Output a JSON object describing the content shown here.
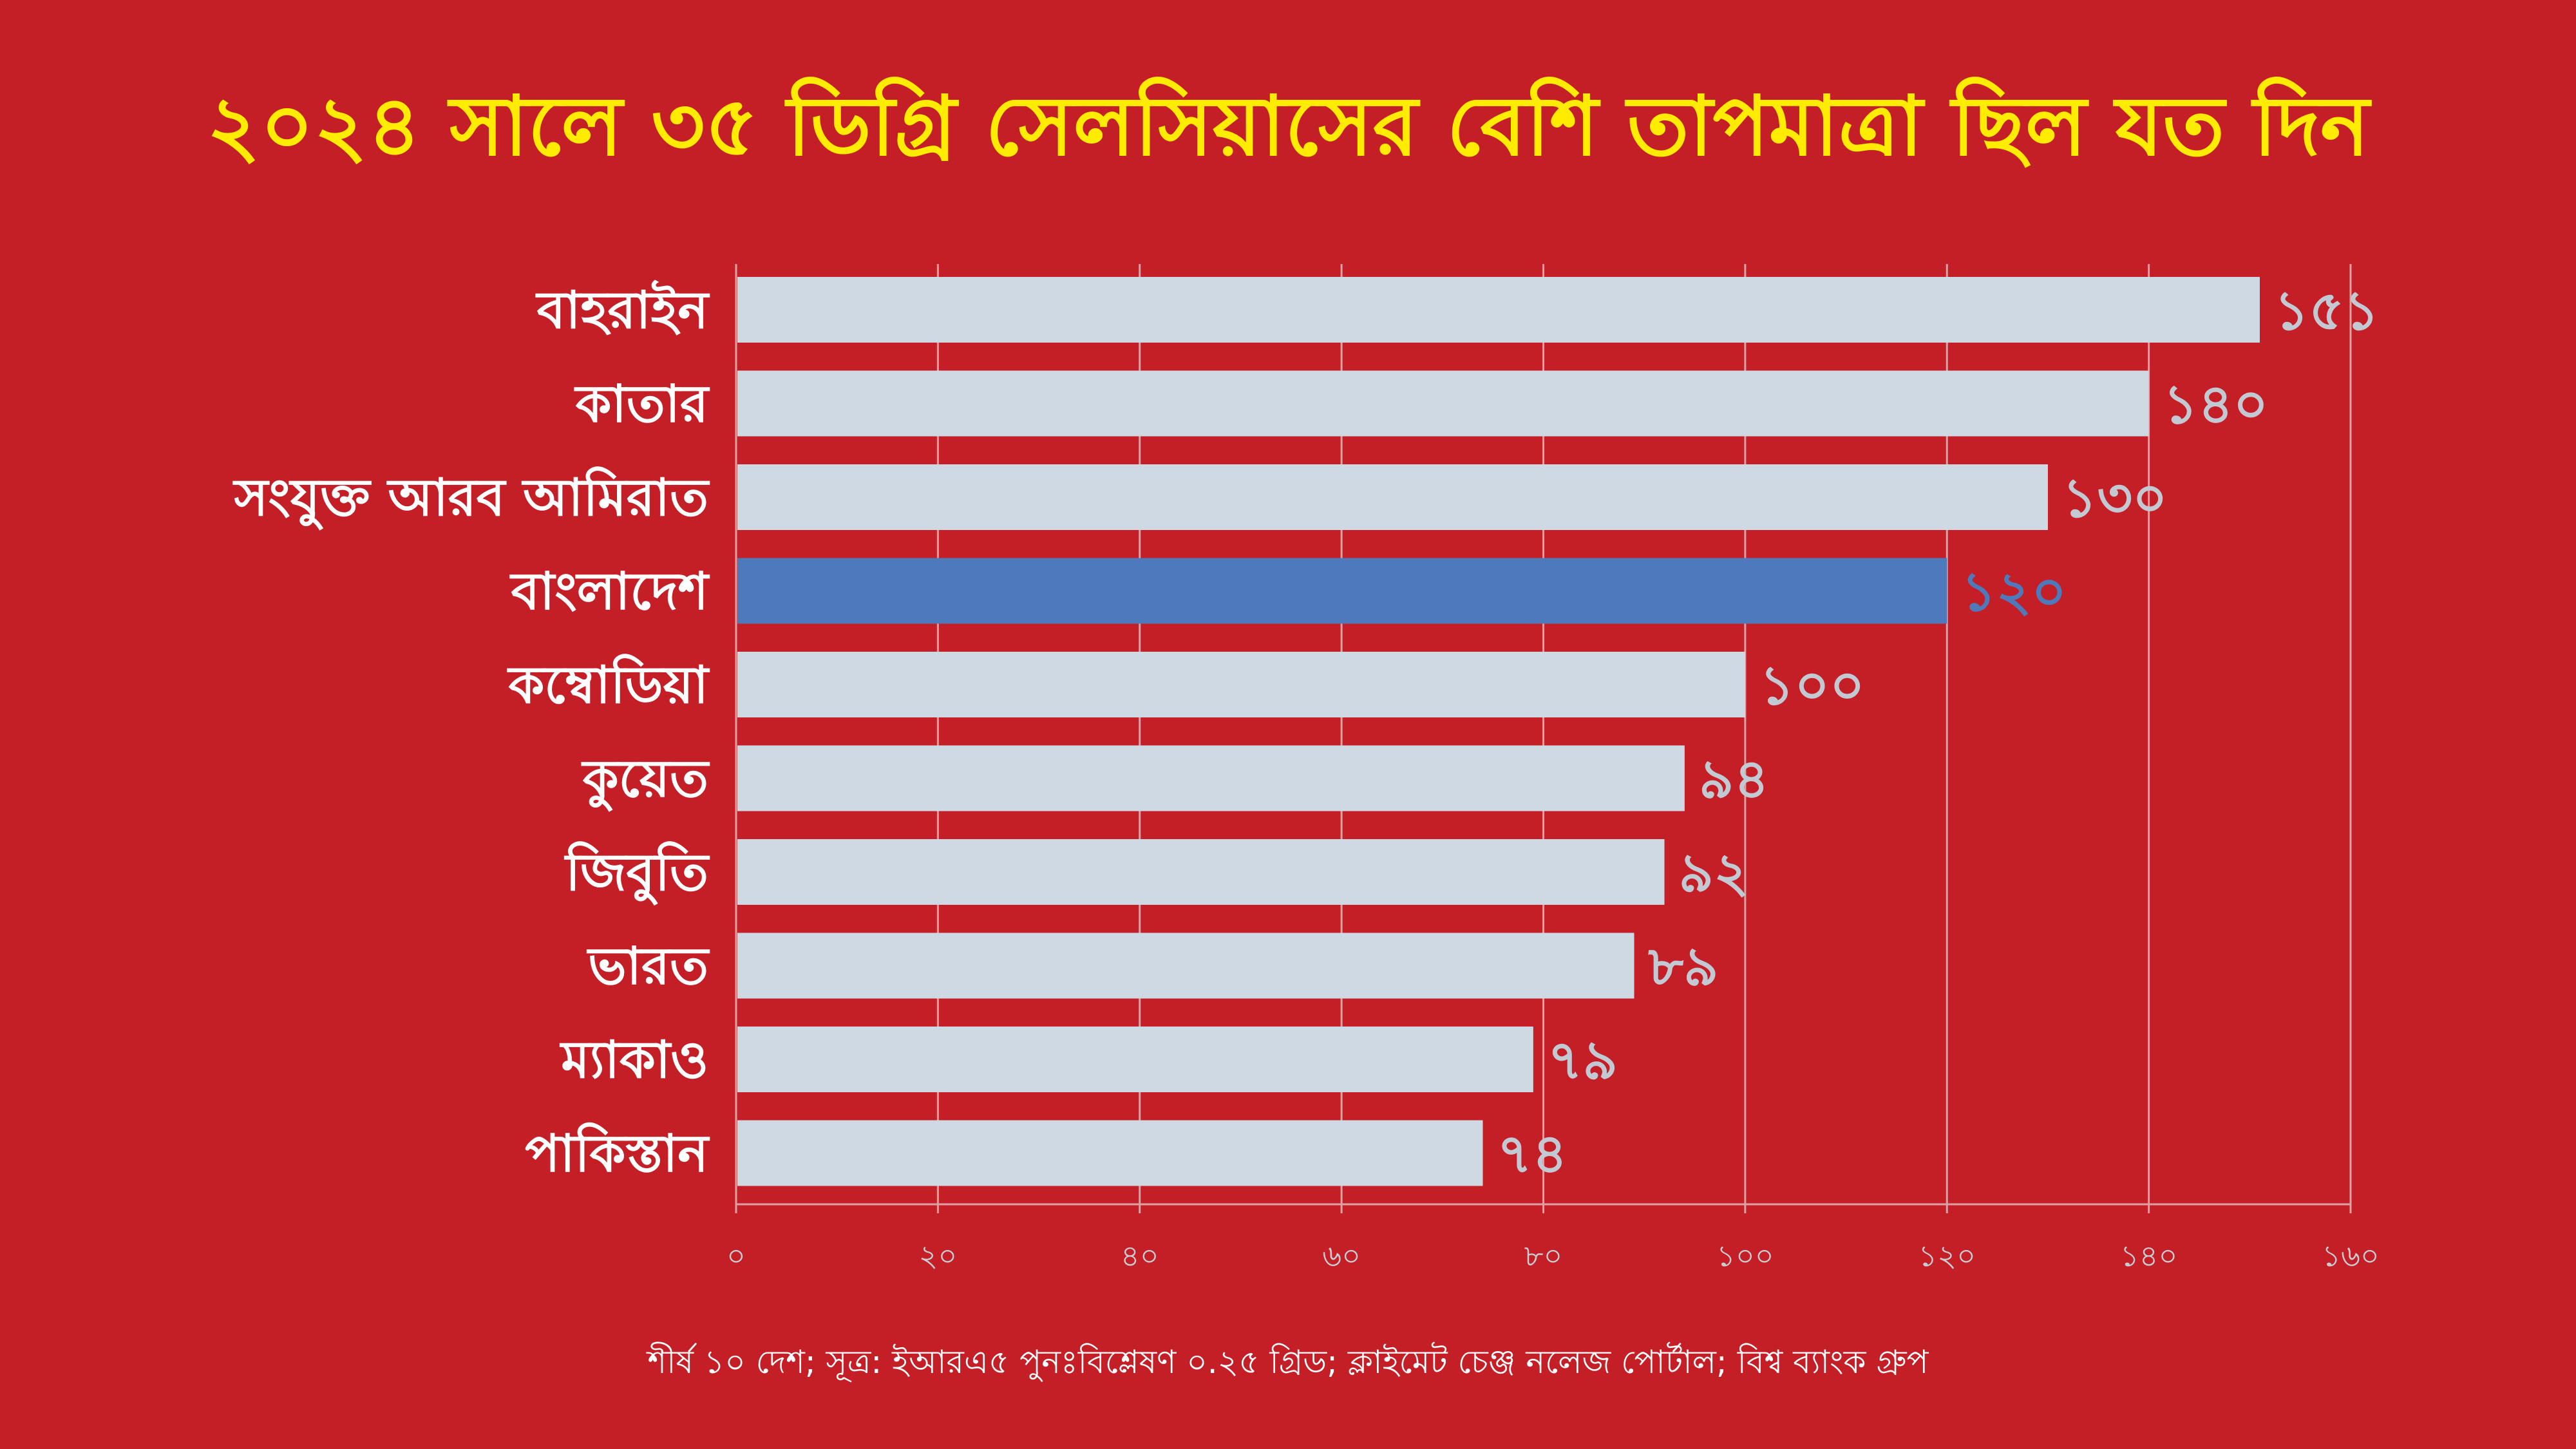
{
  "title": "২০২৪ সালে ৩৫ ডিগ্রি সেলসিয়াসের বেশি তাপমাত্রা ছিল যত দিন",
  "source_note": "শীর্ষ ১০ দেশ; সূত্র: ইআরএ৫ পুনঃবিশ্লেষণ ০.২৫ গ্রিড; ক্লাইমেট চেঞ্জ নলেজ পোর্টাল; বিশ্ব ব্যাংক গ্রুপ",
  "colors": {
    "background": "#c41f26",
    "title": "#ffec00",
    "bar": "#cfd9e4",
    "bar_highlight": "#4e7abc",
    "value_label": "#c3c9d2",
    "value_label_highlight": "#4e7abc",
    "gridline": "#dea1a3",
    "axis_tick_label": "#c8cdd4",
    "category_label": "#ffffff"
  },
  "chart_data": {
    "type": "bar",
    "orientation": "horizontal",
    "categories": [
      "বাহরাইন",
      "কাতার",
      "সংযুক্ত আরব আমিরাত",
      "বাংলাদেশ",
      "কম্বোডিয়া",
      "কুয়েত",
      "জিবুতি",
      "ভারত",
      "ম্যাকাও",
      "পাকিস্তান"
    ],
    "values": [
      151,
      140,
      130,
      120,
      100,
      94,
      92,
      89,
      79,
      74
    ],
    "value_labels": [
      "১৫১",
      "১৪০",
      "১৩০",
      "১২০",
      "১০০",
      "৯৪",
      "৯২",
      "৮৯",
      "৭৯",
      "৭৪"
    ],
    "highlight_category": "বাংলাদেশ",
    "xlim": [
      0,
      160
    ],
    "x_ticks": [
      0,
      20,
      40,
      60,
      80,
      100,
      120,
      140,
      160
    ],
    "x_tick_labels": [
      "০",
      "২০",
      "৪০",
      "৬০",
      "৮০",
      "১০০",
      "১২০",
      "১৪০",
      "১৬০"
    ],
    "grid": true,
    "legend": "none"
  }
}
